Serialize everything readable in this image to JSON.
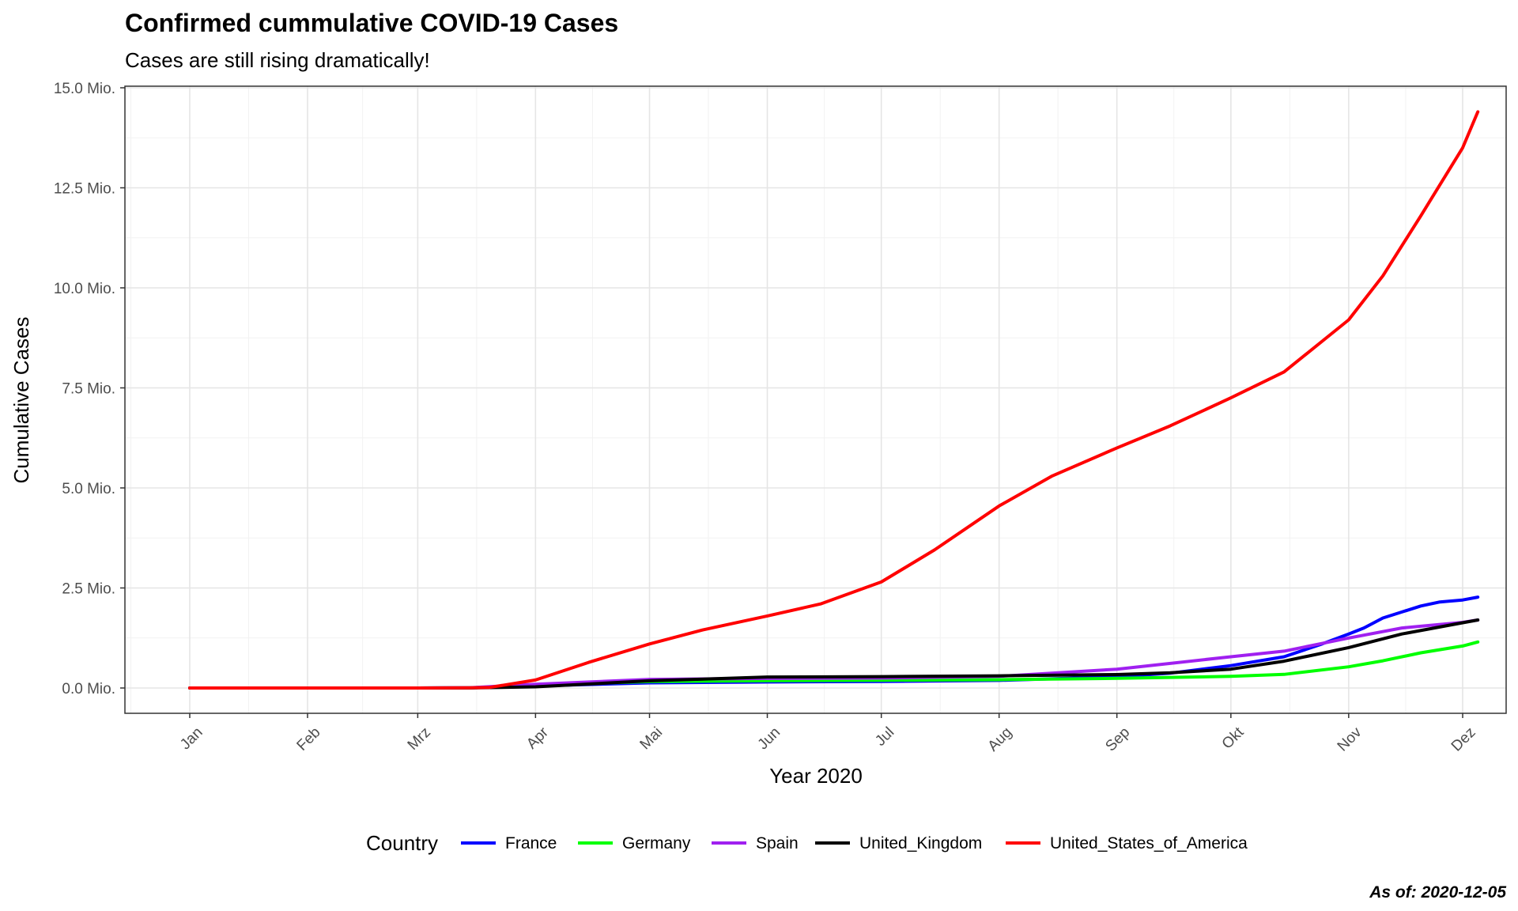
{
  "chart_data": {
    "type": "line",
    "title": "Confirmed cummulative COVID-19 Cases",
    "subtitle": "Cases are still rising dramatically!",
    "xlabel": "Year 2020",
    "ylabel": "Cumulative Cases",
    "caption": "As of: 2020-12-05",
    "x_ticks": [
      {
        "label": "Jan",
        "day": 0
      },
      {
        "label": "Feb",
        "day": 31
      },
      {
        "label": "Mrz",
        "day": 60
      },
      {
        "label": "Apr",
        "day": 91
      },
      {
        "label": "Mai",
        "day": 121
      },
      {
        "label": "Jun",
        "day": 152
      },
      {
        "label": "Jul",
        "day": 182
      },
      {
        "label": "Aug",
        "day": 213
      },
      {
        "label": "Sep",
        "day": 244
      },
      {
        "label": "Okt",
        "day": 274
      },
      {
        "label": "Nov",
        "day": 305
      },
      {
        "label": "Dez",
        "day": 335
      }
    ],
    "y_ticks": [
      {
        "label": "0.0 Mio.",
        "value": 0
      },
      {
        "label": "2.5 Mio.",
        "value": 2500000
      },
      {
        "label": "5.0 Mio.",
        "value": 5000000
      },
      {
        "label": "7.5 Mio.",
        "value": 7500000
      },
      {
        "label": "10.0 Mio.",
        "value": 10000000
      },
      {
        "label": "12.5 Mio.",
        "value": 12500000
      },
      {
        "label": "15.0 Mio.",
        "value": 15000000
      }
    ],
    "ylim": [
      -700000,
      15000000
    ],
    "grid": true,
    "legend": {
      "title": "Country",
      "position": "bottom"
    },
    "series": [
      {
        "name": "France",
        "color": "#0000ff",
        "points": [
          [
            "2020-01-01",
            0
          ],
          [
            "2020-03-01",
            100
          ],
          [
            "2020-03-15",
            5400
          ],
          [
            "2020-04-01",
            52000
          ],
          [
            "2020-05-01",
            129000
          ],
          [
            "2020-06-01",
            150000
          ],
          [
            "2020-07-01",
            165000
          ],
          [
            "2020-08-01",
            190000
          ],
          [
            "2020-09-01",
            280000
          ],
          [
            "2020-09-15",
            370000
          ],
          [
            "2020-10-01",
            560000
          ],
          [
            "2020-10-15",
            780000
          ],
          [
            "2020-10-25",
            1100000
          ],
          [
            "2020-11-01",
            1350000
          ],
          [
            "2020-11-05",
            1500000
          ],
          [
            "2020-11-10",
            1750000
          ],
          [
            "2020-11-15",
            1900000
          ],
          [
            "2020-11-20",
            2050000
          ],
          [
            "2020-11-25",
            2150000
          ],
          [
            "2020-12-01",
            2200000
          ],
          [
            "2020-12-05",
            2270000
          ]
        ]
      },
      {
        "name": "Germany",
        "color": "#00ff00",
        "points": [
          [
            "2020-01-01",
            0
          ],
          [
            "2020-03-01",
            100
          ],
          [
            "2020-03-15",
            5800
          ],
          [
            "2020-04-01",
            70000
          ],
          [
            "2020-05-01",
            160000
          ],
          [
            "2020-06-01",
            182000
          ],
          [
            "2020-07-01",
            194000
          ],
          [
            "2020-08-01",
            208000
          ],
          [
            "2020-09-01",
            242000
          ],
          [
            "2020-10-01",
            290000
          ],
          [
            "2020-10-15",
            340000
          ],
          [
            "2020-11-01",
            530000
          ],
          [
            "2020-11-10",
            680000
          ],
          [
            "2020-11-20",
            880000
          ],
          [
            "2020-12-01",
            1050000
          ],
          [
            "2020-12-05",
            1150000
          ]
        ]
      },
      {
        "name": "Spain",
        "color": "#a020f0",
        "points": [
          [
            "2020-01-01",
            0
          ],
          [
            "2020-03-01",
            100
          ],
          [
            "2020-03-15",
            7800
          ],
          [
            "2020-04-01",
            95000
          ],
          [
            "2020-05-01",
            215000
          ],
          [
            "2020-06-01",
            239000
          ],
          [
            "2020-07-01",
            249000
          ],
          [
            "2020-08-01",
            290000
          ],
          [
            "2020-09-01",
            470000
          ],
          [
            "2020-10-01",
            780000
          ],
          [
            "2020-10-15",
            920000
          ],
          [
            "2020-11-01",
            1250000
          ],
          [
            "2020-11-15",
            1500000
          ],
          [
            "2020-12-01",
            1640000
          ],
          [
            "2020-12-05",
            1700000
          ]
        ]
      },
      {
        "name": "United_Kingdom",
        "color": "#000000",
        "points": [
          [
            "2020-01-01",
            0
          ],
          [
            "2020-03-01",
            100
          ],
          [
            "2020-03-15",
            1400
          ],
          [
            "2020-04-01",
            30000
          ],
          [
            "2020-05-01",
            180000
          ],
          [
            "2020-06-01",
            275000
          ],
          [
            "2020-07-01",
            285000
          ],
          [
            "2020-08-01",
            304000
          ],
          [
            "2020-09-01",
            336000
          ],
          [
            "2020-09-15",
            380000
          ],
          [
            "2020-10-01",
            470000
          ],
          [
            "2020-10-15",
            670000
          ],
          [
            "2020-11-01",
            1010000
          ],
          [
            "2020-11-15",
            1350000
          ],
          [
            "2020-12-01",
            1630000
          ],
          [
            "2020-12-05",
            1700000
          ]
        ]
      },
      {
        "name": "United_States_of_America",
        "color": "#ff0000",
        "points": [
          [
            "2020-01-01",
            0
          ],
          [
            "2020-03-01",
            70
          ],
          [
            "2020-03-15",
            3500
          ],
          [
            "2020-03-20",
            16000
          ],
          [
            "2020-04-01",
            200000
          ],
          [
            "2020-04-15",
            640000
          ],
          [
            "2020-05-01",
            1100000
          ],
          [
            "2020-05-15",
            1450000
          ],
          [
            "2020-06-01",
            1800000
          ],
          [
            "2020-06-15",
            2100000
          ],
          [
            "2020-07-01",
            2650000
          ],
          [
            "2020-07-15",
            3450000
          ],
          [
            "2020-08-01",
            4550000
          ],
          [
            "2020-08-15",
            5300000
          ],
          [
            "2020-09-01",
            6000000
          ],
          [
            "2020-09-15",
            6550000
          ],
          [
            "2020-10-01",
            7250000
          ],
          [
            "2020-10-15",
            7900000
          ],
          [
            "2020-11-01",
            9200000
          ],
          [
            "2020-11-10",
            10300000
          ],
          [
            "2020-11-20",
            11800000
          ],
          [
            "2020-12-01",
            13500000
          ],
          [
            "2020-12-05",
            14400000
          ]
        ]
      }
    ]
  }
}
